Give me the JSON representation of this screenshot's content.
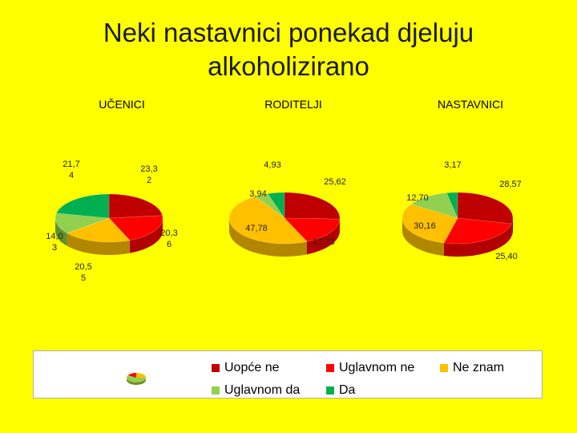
{
  "title_line1": "Neki nastavnici ponekad djeluju",
  "title_line2": "alkoholizirano",
  "chart_data": [
    {
      "type": "pie",
      "title": "UČENICI",
      "slices": [
        {
          "category": "Uopće ne",
          "value": 23.32,
          "label_lines": [
            "23,3",
            "2"
          ]
        },
        {
          "category": "Uglavnom ne",
          "value": 20.36,
          "label_lines": [
            "20,3",
            "6"
          ]
        },
        {
          "category": "Ne znam",
          "value": 20.55,
          "label_lines": [
            "20,5",
            "5"
          ]
        },
        {
          "category": "Uglavnom da",
          "value": 14.03,
          "label_lines": [
            "14,0",
            "3"
          ]
        },
        {
          "category": "Da",
          "value": 21.74,
          "label_lines": [
            "21,7",
            "4"
          ]
        }
      ]
    },
    {
      "type": "pie",
      "title": "RODITELJI",
      "slices": [
        {
          "category": "Uopće ne",
          "value": 25.62,
          "label_lines": [
            "25,62"
          ]
        },
        {
          "category": "Uglavnom ne",
          "value": 17.73,
          "label_lines": [
            "17,73"
          ]
        },
        {
          "category": "Ne znam",
          "value": 47.78,
          "label_lines": [
            "47,78"
          ]
        },
        {
          "category": "Uglavnom da",
          "value": 3.94,
          "label_lines": [
            "3,94"
          ]
        },
        {
          "category": "Da",
          "value": 4.93,
          "label_lines": [
            "4,93"
          ]
        }
      ]
    },
    {
      "type": "pie",
      "title": "NASTAVNICI",
      "slices": [
        {
          "category": "Uopće ne",
          "value": 28.57,
          "label_lines": [
            "28,57"
          ]
        },
        {
          "category": "Uglavnom ne",
          "value": 25.4,
          "label_lines": [
            "25,40"
          ]
        },
        {
          "category": "Ne znam",
          "value": 30.16,
          "label_lines": [
            "30,16"
          ]
        },
        {
          "category": "Uglavnom da",
          "value": 12.7,
          "label_lines": [
            "12,70"
          ]
        },
        {
          "category": "Da",
          "value": 3.17,
          "label_lines": [
            "3,17"
          ]
        }
      ]
    }
  ],
  "legend": [
    {
      "label": "Uopće ne",
      "color": "#c00000"
    },
    {
      "label": "Uglavnom ne",
      "color": "#ff0000"
    },
    {
      "label": "Ne znam",
      "color": "#ffc000"
    },
    {
      "label": "Uglavnom da",
      "color": "#92d050"
    },
    {
      "label": "Da",
      "color": "#00b050"
    }
  ],
  "legend_icon": "pie-chart-icon",
  "colors": {
    "background": "#ffff00",
    "Uopće ne": "#c00000",
    "Uglavnom ne": "#ff0000",
    "Ne znam": "#ffc000",
    "Uglavnom da": "#92d050",
    "Da": "#00b050"
  }
}
